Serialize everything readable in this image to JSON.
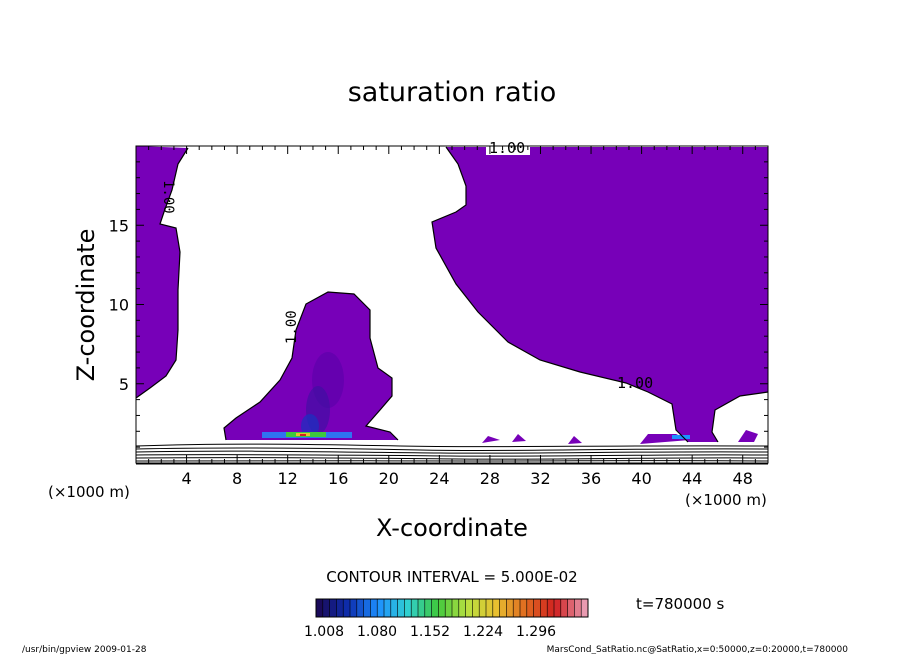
{
  "chart_data": {
    "type": "heatmap",
    "title": "saturation ratio",
    "xlabel": "X-coordinate",
    "ylabel": "Z-coordinate",
    "x_unit": "(×1000 m)",
    "z_unit": "(×1000 m)",
    "xlim": [
      0,
      50
    ],
    "ylim": [
      0,
      20
    ],
    "x_ticks": [
      4,
      8,
      12,
      16,
      20,
      24,
      28,
      32,
      36,
      40,
      44,
      48
    ],
    "y_ticks": [
      5,
      10,
      15
    ],
    "contour_labels": [
      "1.00",
      "1.00",
      "1.00",
      "1.00"
    ],
    "contour_interval_text": "CONTOUR INTERVAL = 5.000E-02",
    "colorbar": {
      "tick_labels": [
        "1.008",
        "1.080",
        "1.152",
        "1.224",
        "1.296"
      ],
      "colors": [
        "#1a0a5a",
        "#0d2fb0",
        "#1e90ff",
        "#30d0d0",
        "#3ec83e",
        "#b8e040",
        "#e8c030",
        "#e06a20",
        "#d02020",
        "#e89ab0"
      ]
    },
    "time_label": "t=780000 s",
    "fill_color": "#7700b8"
  },
  "footer": {
    "left": "/usr/bin/gpview  2009-01-28",
    "right": "MarsCond_SatRatio.nc@SatRatio,x=0:50000,z=0:20000,t=780000"
  }
}
